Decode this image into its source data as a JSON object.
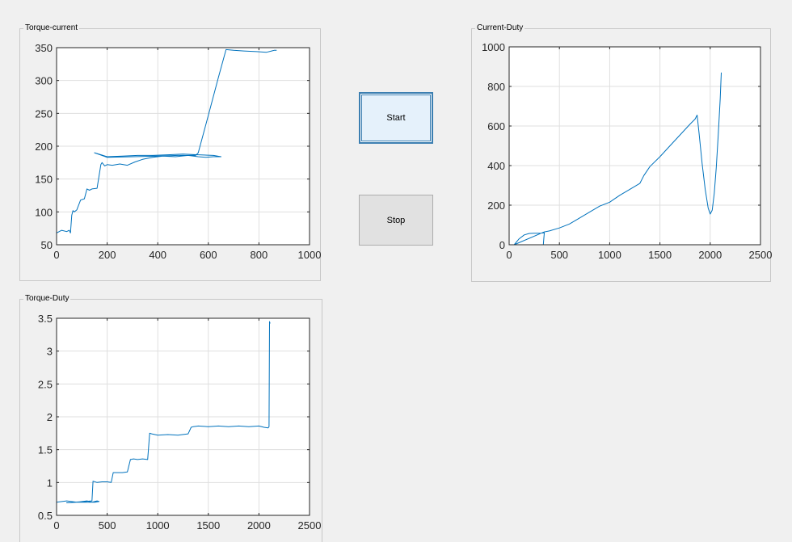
{
  "panels": {
    "torque_current": {
      "title": "Torque-current"
    },
    "current_duty": {
      "title": "Current-Duty"
    },
    "torque_duty": {
      "title": "Torque-Duty"
    }
  },
  "buttons": {
    "start_label": "Start",
    "stop_label": "Stop"
  },
  "colors": {
    "line": "#0072bd",
    "axes": "#262626",
    "grid": "#dfdfdf",
    "background": "#f0f0f0"
  },
  "chart_data": [
    {
      "id": "torque-current",
      "type": "line",
      "title": "",
      "xlabel": "",
      "ylabel": "",
      "xlim": [
        0,
        1000
      ],
      "ylim": [
        50,
        350
      ],
      "xticks": [
        0,
        200,
        400,
        600,
        800,
        1000
      ],
      "yticks": [
        50,
        100,
        150,
        200,
        250,
        300,
        350
      ],
      "grid": true,
      "x": [
        0,
        20,
        40,
        50,
        55,
        60,
        65,
        70,
        80,
        95,
        110,
        120,
        130,
        140,
        160,
        175,
        180,
        190,
        200,
        220,
        250,
        280,
        310,
        340,
        380,
        420,
        470,
        520,
        560,
        590,
        620,
        650,
        620,
        560,
        500,
        440,
        380,
        320,
        260,
        200,
        150,
        200,
        300,
        400,
        480,
        550,
        560,
        600,
        640,
        670,
        700,
        740,
        790,
        830,
        850,
        860,
        870
      ],
      "y": [
        68,
        72,
        70,
        72,
        68,
        95,
        102,
        100,
        103,
        118,
        120,
        135,
        133,
        135,
        136,
        172,
        175,
        170,
        172,
        171,
        173,
        171,
        176,
        180,
        183,
        185,
        184,
        186,
        184,
        183,
        184,
        184,
        186,
        187,
        188,
        187,
        186,
        186,
        185,
        184,
        190,
        183,
        184,
        185,
        186,
        186,
        190,
        247,
        305,
        347,
        346,
        345,
        344,
        343,
        345,
        346,
        346
      ]
    },
    {
      "id": "current-duty",
      "type": "line",
      "title": "",
      "xlabel": "",
      "ylabel": "",
      "xlim": [
        0,
        2500
      ],
      "ylim": [
        0,
        1000
      ],
      "xticks": [
        0,
        500,
        1000,
        1500,
        2000,
        2500
      ],
      "yticks": [
        0,
        200,
        400,
        600,
        800,
        1000
      ],
      "grid": true,
      "x": [
        50,
        100,
        150,
        200,
        250,
        300,
        350,
        340,
        300,
        200,
        100,
        50,
        350,
        400,
        500,
        600,
        700,
        800,
        900,
        1000,
        1100,
        1200,
        1300,
        1340,
        1400,
        1500,
        1600,
        1700,
        1800,
        1850,
        1870,
        1890,
        1920,
        1950,
        1980,
        2000,
        2020,
        2040,
        2060,
        2080,
        2100,
        2110
      ],
      "y": [
        0,
        30,
        50,
        57,
        58,
        58,
        60,
        0,
        0,
        0,
        0,
        0,
        65,
        70,
        85,
        105,
        135,
        165,
        195,
        215,
        250,
        280,
        310,
        350,
        395,
        445,
        500,
        555,
        610,
        635,
        655,
        560,
        410,
        280,
        185,
        155,
        175,
        260,
        390,
        560,
        740,
        870
      ]
    },
    {
      "id": "torque-duty",
      "type": "line",
      "title": "",
      "xlabel": "",
      "ylabel": "",
      "xlim": [
        0,
        2500
      ],
      "ylim": [
        0.5,
        3.5
      ],
      "xticks": [
        0,
        500,
        1000,
        1500,
        2000,
        2500
      ],
      "yticks": [
        0.5,
        1,
        1.5,
        2,
        2.5,
        3,
        3.5
      ],
      "grid": true,
      "x": [
        0,
        100,
        200,
        300,
        350,
        400,
        420,
        380,
        300,
        200,
        100,
        350,
        360,
        400,
        450,
        500,
        540,
        560,
        600,
        650,
        700,
        730,
        760,
        800,
        850,
        900,
        920,
        940,
        1000,
        1100,
        1200,
        1300,
        1330,
        1350,
        1400,
        1500,
        1600,
        1700,
        1800,
        1900,
        2000,
        2050,
        2090,
        2100,
        2105,
        2110
      ],
      "y": [
        0.7,
        0.72,
        0.7,
        0.72,
        0.7,
        0.72,
        0.71,
        0.7,
        0.7,
        0.7,
        0.69,
        0.72,
        1.02,
        1.0,
        1.01,
        1.01,
        1.0,
        1.15,
        1.15,
        1.15,
        1.16,
        1.35,
        1.36,
        1.35,
        1.36,
        1.35,
        1.75,
        1.74,
        1.72,
        1.73,
        1.72,
        1.74,
        1.84,
        1.85,
        1.86,
        1.85,
        1.86,
        1.85,
        1.86,
        1.85,
        1.86,
        1.84,
        1.83,
        1.85,
        3.45,
        3.42
      ]
    }
  ]
}
